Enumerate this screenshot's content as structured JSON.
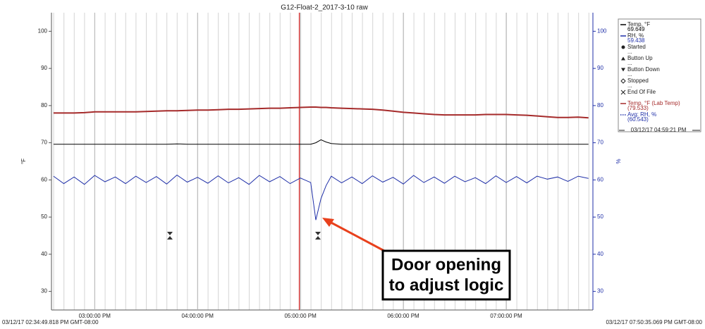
{
  "chart_data": {
    "type": "line",
    "title": "G12-Float-2_2017-3-10 raw",
    "ylabel": "°F",
    "y2label": "%",
    "start_label": "03/12/17 02:34:49.818 PM GMT-08:00",
    "end_label": "03/12/17 07:50:35.069 PM GMT-08:00",
    "xlim": [
      14.58,
      19.843
    ],
    "xticks": [
      {
        "value": 15,
        "label": "03:00:00 PM"
      },
      {
        "value": 16,
        "label": "04:00:00 PM"
      },
      {
        "value": 17,
        "label": "05:00:00 PM"
      },
      {
        "value": 18,
        "label": "06:00:00 PM"
      },
      {
        "value": 19,
        "label": "07:00:00 PM"
      }
    ],
    "ylim": [
      25,
      105
    ],
    "yticks": [
      30,
      40,
      50,
      60,
      70,
      80,
      90,
      100
    ],
    "y2lim": [
      25,
      105
    ],
    "y2ticks": [
      30,
      40,
      50,
      60,
      70,
      80,
      90,
      100
    ],
    "x": [
      14.6,
      14.7,
      14.8,
      14.9,
      15.0,
      15.1,
      15.2,
      15.3,
      15.4,
      15.5,
      15.6,
      15.7,
      15.8,
      15.9,
      16.0,
      16.1,
      16.2,
      16.3,
      16.4,
      16.5,
      16.6,
      16.7,
      16.8,
      16.9,
      17.0,
      17.1,
      17.15,
      17.2,
      17.25,
      17.3,
      17.4,
      17.5,
      17.6,
      17.7,
      17.8,
      17.9,
      18.0,
      18.1,
      18.2,
      18.3,
      18.4,
      18.5,
      18.6,
      18.7,
      18.8,
      18.9,
      19.0,
      19.1,
      19.2,
      19.3,
      19.4,
      19.5,
      19.6,
      19.7,
      19.8
    ],
    "series": [
      {
        "name": "Temp, °F",
        "reading": "69.649",
        "color": "#000000",
        "values": [
          69.6,
          69.6,
          69.6,
          69.6,
          69.6,
          69.6,
          69.6,
          69.6,
          69.6,
          69.6,
          69.6,
          69.6,
          69.7,
          69.6,
          69.6,
          69.6,
          69.6,
          69.6,
          69.6,
          69.6,
          69.6,
          69.6,
          69.6,
          69.6,
          69.6,
          69.6,
          70.0,
          70.8,
          70.2,
          69.8,
          69.6,
          69.6,
          69.6,
          69.6,
          69.6,
          69.6,
          69.6,
          69.6,
          69.6,
          69.6,
          69.6,
          69.6,
          69.6,
          69.6,
          69.6,
          69.6,
          69.6,
          69.6,
          69.6,
          69.6,
          69.6,
          69.6,
          69.6,
          69.6,
          69.6
        ]
      },
      {
        "name": "RH, %",
        "reading": "59.438",
        "color": "#1f2fa8",
        "axis": "y2",
        "values": [
          61.0,
          59.0,
          60.8,
          58.8,
          61.2,
          59.5,
          60.8,
          59.0,
          61.0,
          59.3,
          60.9,
          58.9,
          61.3,
          59.4,
          60.7,
          59.1,
          61.1,
          59.2,
          60.6,
          58.8,
          61.2,
          59.5,
          60.9,
          59.0,
          60.5,
          59.3,
          49.2,
          55.0,
          58.5,
          61.0,
          59.2,
          60.8,
          59.0,
          61.1,
          59.4,
          60.7,
          58.9,
          61.2,
          59.3,
          60.8,
          59.1,
          61.0,
          59.5,
          60.6,
          59.0,
          61.1,
          59.3,
          60.9,
          59.2,
          61.0,
          60.2,
          60.8,
          59.6,
          61.0,
          60.4
        ]
      },
      {
        "name": "Temp, °F (Lab Temp)",
        "reading": "(79.533)",
        "color": "#a52a2a",
        "values": [
          78.0,
          78.0,
          78.0,
          78.1,
          78.3,
          78.3,
          78.3,
          78.3,
          78.3,
          78.4,
          78.5,
          78.6,
          78.6,
          78.7,
          78.8,
          78.8,
          78.9,
          79.0,
          79.0,
          79.1,
          79.2,
          79.3,
          79.3,
          79.4,
          79.5,
          79.6,
          79.6,
          79.5,
          79.5,
          79.4,
          79.3,
          79.2,
          79.1,
          79.0,
          78.8,
          78.5,
          78.2,
          78.0,
          77.8,
          77.6,
          77.5,
          77.5,
          77.5,
          77.5,
          77.6,
          77.6,
          77.6,
          77.5,
          77.4,
          77.2,
          77.0,
          76.8,
          76.8,
          76.9,
          76.7
        ]
      }
    ],
    "avg_legend": {
      "name": "Avg: RH, %",
      "reading": "(60.543)"
    },
    "events": [
      {
        "name": "Started",
        "note": "..."
      },
      {
        "name": "Button Up",
        "note": "..."
      },
      {
        "name": "Button Down",
        "note": "..."
      },
      {
        "name": "Stopped",
        "note": "..."
      },
      {
        "name": "End Of File"
      }
    ],
    "cursor": {
      "x": 16.989,
      "label": "03/12/17 04:59:21 PM"
    },
    "annotation": [
      "Door opening",
      "to adjust logic"
    ]
  }
}
